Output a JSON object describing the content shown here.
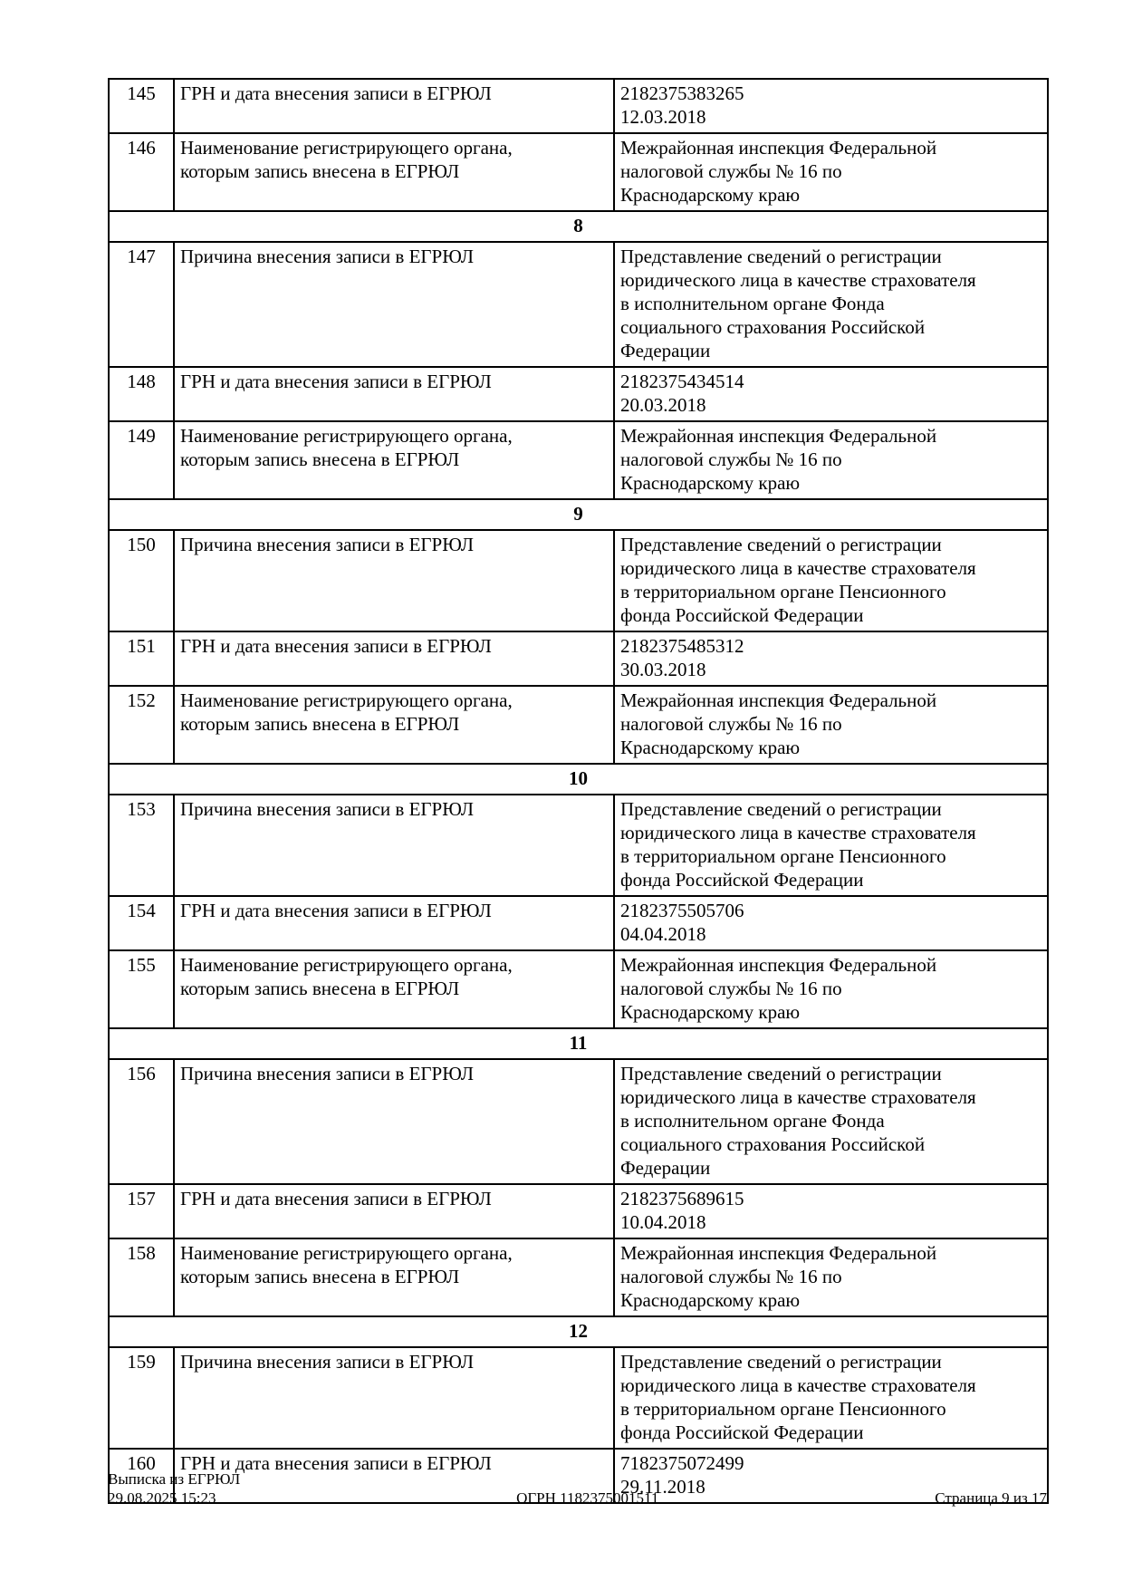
{
  "document": {
    "table": {
      "rows": [
        {
          "type": "entry",
          "num": "145",
          "label": "ГРН и дата внесения записи в ЕГРЮЛ",
          "value": "2182375383265\n12.03.2018"
        },
        {
          "type": "entry",
          "num": "146",
          "label": "Наименование регистрирующего органа,\nкоторым запись внесена в ЕГРЮЛ",
          "value": "Межрайонная инспекция Федеральной\nналоговой службы № 16 по\nКраснодарскому краю"
        },
        {
          "type": "section",
          "num": "8"
        },
        {
          "type": "entry",
          "num": "147",
          "label": "Причина внесения записи в ЕГРЮЛ",
          "value": "Представление сведений о регистрации\nюридического лица в качестве страхователя\nв исполнительном органе Фонда\nсоциального страхования Российской\nФедерации"
        },
        {
          "type": "entry",
          "num": "148",
          "label": "ГРН и дата внесения записи в ЕГРЮЛ",
          "value": "2182375434514\n20.03.2018"
        },
        {
          "type": "entry",
          "num": "149",
          "label": "Наименование регистрирующего органа,\nкоторым запись внесена в ЕГРЮЛ",
          "value": "Межрайонная инспекция Федеральной\nналоговой службы № 16 по\nКраснодарскому краю"
        },
        {
          "type": "section",
          "num": "9"
        },
        {
          "type": "entry",
          "num": "150",
          "label": "Причина внесения записи в ЕГРЮЛ",
          "value": "Представление сведений о регистрации\nюридического лица в качестве страхователя\nв территориальном органе Пенсионного\nфонда Российской Федерации"
        },
        {
          "type": "entry",
          "num": "151",
          "label": "ГРН и дата внесения записи в ЕГРЮЛ",
          "value": "2182375485312\n30.03.2018"
        },
        {
          "type": "entry",
          "num": "152",
          "label": "Наименование регистрирующего органа,\nкоторым запись внесена в ЕГРЮЛ",
          "value": "Межрайонная инспекция Федеральной\nналоговой службы № 16 по\nКраснодарскому краю"
        },
        {
          "type": "section",
          "num": "10"
        },
        {
          "type": "entry",
          "num": "153",
          "label": "Причина внесения записи в ЕГРЮЛ",
          "value": "Представление сведений о регистрации\nюридического лица в качестве страхователя\nв территориальном органе Пенсионного\nфонда Российской Федерации"
        },
        {
          "type": "entry",
          "num": "154",
          "label": "ГРН и дата внесения записи в ЕГРЮЛ",
          "value": "2182375505706\n04.04.2018"
        },
        {
          "type": "entry",
          "num": "155",
          "label": "Наименование регистрирующего органа,\nкоторым запись внесена в ЕГРЮЛ",
          "value": "Межрайонная инспекция Федеральной\nналоговой службы № 16 по\nКраснодарскому краю"
        },
        {
          "type": "section",
          "num": "11"
        },
        {
          "type": "entry",
          "num": "156",
          "label": "Причина внесения записи в ЕГРЮЛ",
          "value": "Представление сведений о регистрации\nюридического лица в качестве страхователя\nв исполнительном органе Фонда\nсоциального страхования Российской\nФедерации"
        },
        {
          "type": "entry",
          "num": "157",
          "label": "ГРН и дата внесения записи в ЕГРЮЛ",
          "value": "2182375689615\n10.04.2018"
        },
        {
          "type": "entry",
          "num": "158",
          "label": "Наименование регистрирующего органа,\nкоторым запись внесена в ЕГРЮЛ",
          "value": "Межрайонная инспекция Федеральной\nналоговой службы № 16 по\nКраснодарскому краю"
        },
        {
          "type": "section",
          "num": "12"
        },
        {
          "type": "entry",
          "num": "159",
          "label": "Причина внесения записи в ЕГРЮЛ",
          "value": "Представление сведений о регистрации\nюридического лица в качестве страхователя\nв территориальном органе Пенсионного\nфонда Российской Федерации"
        },
        {
          "type": "entry",
          "num": "160",
          "label": "ГРН и дата внесения записи в ЕГРЮЛ",
          "value": "7182375072499\n29.11.2018"
        }
      ]
    },
    "footer": {
      "doc_type": "Выписка из ЕГРЮЛ",
      "timestamp": "29.08.2025 15:23",
      "ogrn": "ОГРН 1182375001511",
      "page": "Страница 9 из 17"
    }
  }
}
